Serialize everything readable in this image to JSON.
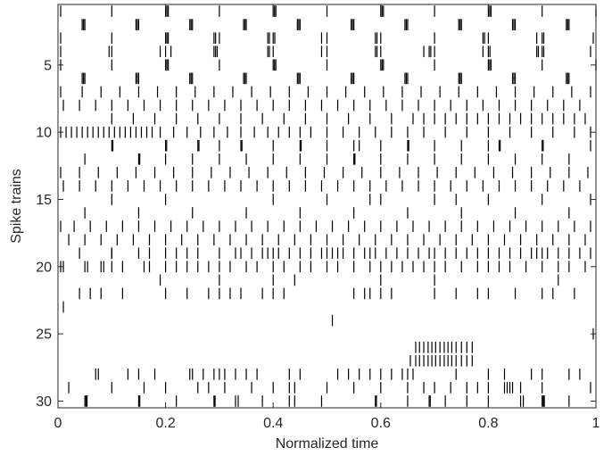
{
  "chart_data": {
    "type": "raster",
    "title": "",
    "xlabel": "Normalized time",
    "ylabel": "Spike trains",
    "xlim": [
      0,
      1
    ],
    "ylim": [
      0.5,
      30.5
    ],
    "y_reversed": true,
    "grid": false,
    "xticks": [
      0,
      0.2,
      0.4,
      0.6,
      0.8,
      1
    ],
    "xtick_labels": [
      "0",
      "0.2",
      "0.4",
      "0.6",
      "0.8",
      "1"
    ],
    "yticks": [
      5,
      10,
      15,
      20,
      25,
      30
    ],
    "ytick_labels": [
      "5",
      "10",
      "15",
      "20",
      "25",
      "30"
    ],
    "spike_color": "#000000",
    "trains": [
      {
        "train": 1,
        "spikes": [
          0.005,
          0.1,
          0.2,
          0.2025,
          0.205,
          0.3,
          0.4,
          0.4025,
          0.405,
          0.5,
          0.6,
          0.6025,
          0.605,
          0.7,
          0.8,
          0.8025,
          0.805,
          0.9,
          1.0
        ]
      },
      {
        "train": 2,
        "spikes": [
          0.045,
          0.0475,
          0.05,
          0.145,
          0.1475,
          0.15,
          0.245,
          0.2475,
          0.25,
          0.345,
          0.3475,
          0.35,
          0.445,
          0.4475,
          0.45,
          0.545,
          0.5475,
          0.55,
          0.645,
          0.6475,
          0.65,
          0.745,
          0.7475,
          0.75,
          0.845,
          0.8475,
          0.85,
          0.945,
          0.9475,
          0.95
        ]
      },
      {
        "train": 3,
        "spikes": [
          0.005,
          0.1,
          0.2,
          0.2025,
          0.205,
          0.29,
          0.293,
          0.3,
          0.39,
          0.393,
          0.4,
          0.403,
          0.49,
          0.5,
          0.59,
          0.593,
          0.6,
          0.7,
          0.79,
          0.793,
          0.8,
          0.89,
          0.9,
          0.903,
          0.995
        ]
      },
      {
        "train": 4,
        "spikes": [
          0.005,
          0.1,
          0.095,
          0.19,
          0.2,
          0.21,
          0.29,
          0.293,
          0.296,
          0.39,
          0.393,
          0.4,
          0.49,
          0.5,
          0.59,
          0.593,
          0.6,
          0.68,
          0.69,
          0.693,
          0.7,
          0.79,
          0.8,
          0.803,
          0.89,
          0.893,
          0.9,
          0.903,
          0.99
        ]
      },
      {
        "train": 5,
        "spikes": [
          0.005,
          0.1,
          0.2,
          0.2025,
          0.205,
          0.3,
          0.4,
          0.4025,
          0.405,
          0.5,
          0.6,
          0.6025,
          0.605,
          0.7,
          0.8,
          0.8025,
          0.805,
          0.9,
          1.0
        ]
      },
      {
        "train": 6,
        "spikes": [
          0.045,
          0.0475,
          0.05,
          0.145,
          0.1475,
          0.15,
          0.245,
          0.2475,
          0.25,
          0.345,
          0.3475,
          0.35,
          0.445,
          0.4475,
          0.45,
          0.545,
          0.5475,
          0.55,
          0.645,
          0.6475,
          0.65,
          0.745,
          0.7475,
          0.75,
          0.845,
          0.8475,
          0.85,
          0.945,
          0.9475,
          0.95
        ]
      },
      {
        "train": 7,
        "spikes": [
          0.005,
          0.045,
          0.08,
          0.115,
          0.15,
          0.185,
          0.22,
          0.255,
          0.29,
          0.325,
          0.36,
          0.395,
          0.43,
          0.465,
          0.5,
          0.535,
          0.57,
          0.605,
          0.64,
          0.675,
          0.71,
          0.745,
          0.78,
          0.815,
          0.85,
          0.885,
          0.92,
          0.955,
          0.99
        ]
      },
      {
        "train": 8,
        "spikes": [
          0.01,
          0.04,
          0.07,
          0.1,
          0.13,
          0.16,
          0.19,
          0.22,
          0.25,
          0.28,
          0.31,
          0.34,
          0.37,
          0.4,
          0.43,
          0.46,
          0.49,
          0.52,
          0.55,
          0.58,
          0.61,
          0.64,
          0.67,
          0.7,
          0.73,
          0.76,
          0.79,
          0.82,
          0.85,
          0.88,
          0.91,
          0.94,
          0.97
        ]
      },
      {
        "train": 9,
        "spikes": [
          0.1,
          0.14,
          0.18,
          0.22,
          0.26,
          0.3,
          0.34,
          0.38,
          0.42,
          0.46,
          0.5,
          0.54,
          0.58,
          0.62,
          0.66,
          0.68,
          0.7,
          0.72,
          0.74,
          0.76,
          0.78,
          0.8,
          0.82,
          0.84,
          0.86,
          0.88,
          0.9,
          0.92,
          0.94,
          0.96,
          0.98
        ]
      },
      {
        "train": 10,
        "spikes": [
          0.005,
          0.015,
          0.025,
          0.035,
          0.045,
          0.055,
          0.065,
          0.075,
          0.085,
          0.095,
          0.105,
          0.115,
          0.125,
          0.135,
          0.145,
          0.155,
          0.165,
          0.175,
          0.19,
          0.215,
          0.24,
          0.265,
          0.29,
          0.315,
          0.34,
          0.365,
          0.39,
          0.41,
          0.43,
          0.45,
          0.47,
          0.5,
          0.53,
          0.56,
          0.59,
          0.62,
          0.65,
          0.68,
          0.72,
          0.76,
          0.8,
          0.84,
          0.88,
          0.92,
          0.96,
          0.99
        ]
      },
      {
        "train": 11,
        "spikes": [
          0.1,
          0.102,
          0.2,
          0.202,
          0.26,
          0.262,
          0.3,
          0.34,
          0.342,
          0.4,
          0.45,
          0.452,
          0.5,
          0.55,
          0.56,
          0.6,
          0.65,
          0.652,
          0.7,
          0.75,
          0.8,
          0.82,
          0.822,
          0.9,
          0.902,
          0.99
        ]
      },
      {
        "train": 12,
        "spikes": [
          0.05,
          0.15,
          0.152,
          0.2,
          0.25,
          0.3,
          0.35,
          0.4,
          0.45,
          0.5,
          0.55,
          0.55,
          0.552,
          0.6,
          0.65,
          0.7,
          0.75,
          0.8,
          0.85,
          0.9,
          0.95
        ]
      },
      {
        "train": 13,
        "spikes": [
          0.005,
          0.04,
          0.075,
          0.11,
          0.145,
          0.18,
          0.215,
          0.25,
          0.285,
          0.32,
          0.355,
          0.39,
          0.425,
          0.46,
          0.495,
          0.53,
          0.565,
          0.6,
          0.635,
          0.67,
          0.705,
          0.74,
          0.775,
          0.81,
          0.845,
          0.88,
          0.915,
          0.95,
          0.985
        ]
      },
      {
        "train": 14,
        "spikes": [
          0.01,
          0.04,
          0.07,
          0.1,
          0.13,
          0.16,
          0.19,
          0.22,
          0.25,
          0.28,
          0.31,
          0.34,
          0.37,
          0.4,
          0.43,
          0.46,
          0.49,
          0.52,
          0.55,
          0.58,
          0.61,
          0.64,
          0.67,
          0.7,
          0.73,
          0.76,
          0.79,
          0.82,
          0.85,
          0.88,
          0.91,
          0.94,
          0.97
        ]
      },
      {
        "train": 15,
        "spikes": [
          0.1,
          0.2,
          0.4,
          0.5,
          0.58,
          0.6,
          0.7,
          0.74,
          0.8,
          0.9,
          0.99
        ]
      },
      {
        "train": 16,
        "spikes": [
          0.05,
          0.15,
          0.25,
          0.35,
          0.45,
          0.55,
          0.65,
          0.75,
          0.85,
          0.95
        ]
      },
      {
        "train": 17,
        "spikes": [
          0.005,
          0.03,
          0.06,
          0.09,
          0.12,
          0.15,
          0.18,
          0.21,
          0.24,
          0.27,
          0.3,
          0.33,
          0.36,
          0.39,
          0.42,
          0.45,
          0.48,
          0.51,
          0.54,
          0.57,
          0.6,
          0.63,
          0.66,
          0.69,
          0.72,
          0.75,
          0.78,
          0.81,
          0.84,
          0.87,
          0.9,
          0.93,
          0.96,
          0.99
        ]
      },
      {
        "train": 18,
        "spikes": [
          0.02,
          0.05,
          0.08,
          0.11,
          0.14,
          0.17,
          0.2,
          0.23,
          0.26,
          0.29,
          0.32,
          0.35,
          0.38,
          0.41,
          0.44,
          0.47,
          0.5,
          0.53,
          0.56,
          0.59,
          0.62,
          0.65,
          0.68,
          0.71,
          0.74,
          0.77,
          0.8,
          0.83,
          0.86,
          0.89,
          0.92,
          0.95,
          0.98
        ]
      },
      {
        "train": 19,
        "spikes": [
          0.04,
          0.1,
          0.1,
          0.15,
          0.17,
          0.2,
          0.22,
          0.24,
          0.26,
          0.3,
          0.33,
          0.34,
          0.36,
          0.38,
          0.39,
          0.4,
          0.41,
          0.43,
          0.45,
          0.47,
          0.49,
          0.5,
          0.51,
          0.52,
          0.53,
          0.55,
          0.57,
          0.58,
          0.59,
          0.61,
          0.63,
          0.65,
          0.67,
          0.69,
          0.7,
          0.72,
          0.74,
          0.76,
          0.78,
          0.8,
          0.82,
          0.84,
          0.86,
          0.88,
          0.89,
          0.9,
          0.91,
          0.93,
          0.95,
          0.97,
          0.99
        ]
      },
      {
        "train": 20,
        "spikes": [
          0.005,
          0.01,
          0.05,
          0.055,
          0.08,
          0.085,
          0.1,
          0.12,
          0.16,
          0.17,
          0.2,
          0.22,
          0.24,
          0.26,
          0.28,
          0.3,
          0.32,
          0.35,
          0.37,
          0.4,
          0.42,
          0.45,
          0.47,
          0.5,
          0.52,
          0.55,
          0.58,
          0.6,
          0.62,
          0.64,
          0.66,
          0.68,
          0.7,
          0.72,
          0.75,
          0.78,
          0.8,
          0.82,
          0.84,
          0.87,
          0.9,
          0.93,
          0.95,
          0.98
        ]
      },
      {
        "train": 21,
        "spikes": [
          0.19,
          0.3,
          0.4,
          0.44,
          0.6,
          0.7,
          0.93
        ]
      },
      {
        "train": 22,
        "spikes": [
          0.04,
          0.06,
          0.08,
          0.12,
          0.2,
          0.24,
          0.28,
          0.3,
          0.32,
          0.34,
          0.38,
          0.4,
          0.42,
          0.55,
          0.57,
          0.58,
          0.6,
          0.62,
          0.7,
          0.74,
          0.78,
          0.8,
          0.85,
          0.9,
          0.92,
          0.96
        ]
      },
      {
        "train": 23,
        "spikes": [
          0.01
        ]
      },
      {
        "train": 24,
        "spikes": [
          0.51
        ]
      },
      {
        "train": 25,
        "spikes": [
          0.995
        ]
      },
      {
        "train": 26,
        "spikes": [
          0.665,
          0.672,
          0.68,
          0.688,
          0.695,
          0.702,
          0.71,
          0.718,
          0.725,
          0.732,
          0.74,
          0.75,
          0.76,
          0.77
        ]
      },
      {
        "train": 27,
        "spikes": [
          0.655,
          0.665,
          0.672,
          0.68,
          0.688,
          0.695,
          0.702,
          0.71,
          0.718,
          0.725,
          0.732,
          0.74,
          0.75,
          0.76,
          0.77
        ]
      },
      {
        "train": 28,
        "spikes": [
          0.07,
          0.075,
          0.13,
          0.15,
          0.18,
          0.245,
          0.25,
          0.27,
          0.29,
          0.3,
          0.31,
          0.33,
          0.35,
          0.37,
          0.43,
          0.45,
          0.52,
          0.54,
          0.56,
          0.58,
          0.6,
          0.62,
          0.64,
          0.65,
          0.66,
          0.74,
          0.8,
          0.83,
          0.88,
          0.9,
          0.95,
          0.97
        ]
      },
      {
        "train": 29,
        "spikes": [
          0.02,
          0.1,
          0.16,
          0.2,
          0.26,
          0.28,
          0.31,
          0.36,
          0.4,
          0.43,
          0.44,
          0.5,
          0.55,
          0.6,
          0.65,
          0.68,
          0.7,
          0.73,
          0.76,
          0.78,
          0.8,
          0.83,
          0.835,
          0.84,
          0.845,
          0.86,
          0.9,
          0.99
        ]
      },
      {
        "train": 30,
        "spikes": [
          0.05,
          0.052,
          0.054,
          0.15,
          0.152,
          0.22,
          0.29,
          0.292,
          0.33,
          0.335,
          0.38,
          0.43,
          0.44,
          0.49,
          0.59,
          0.592,
          0.65,
          0.69,
          0.692,
          0.72,
          0.76,
          0.8,
          0.86,
          0.865,
          0.9,
          0.902,
          0.904,
          0.95
        ]
      }
    ]
  }
}
